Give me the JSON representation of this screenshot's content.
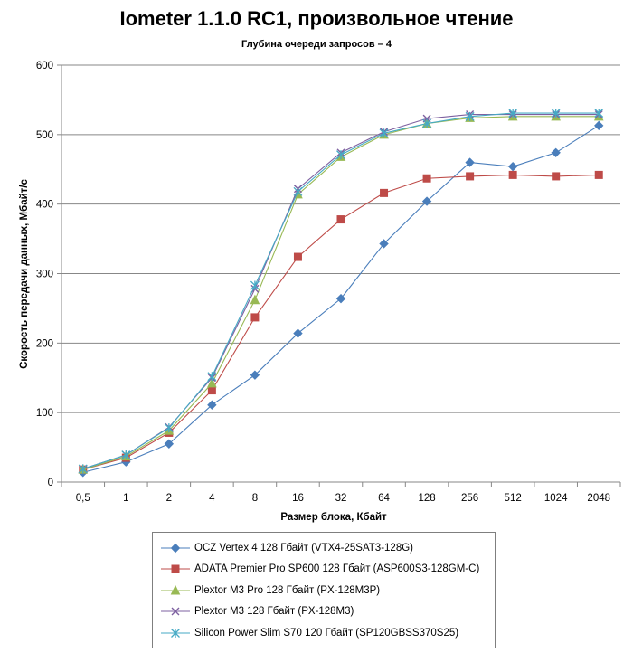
{
  "chart_data": {
    "type": "line",
    "title": "Iometer 1.1.0 RC1, произвольное чтение",
    "subtitle": "Глубина очереди запросов – 4",
    "xlabel": "Размер блока, Кбайт",
    "ylabel": "Скорость передачи данных, Мбайт/с",
    "ylim": [
      0,
      600
    ],
    "yticks": [
      "0",
      "100",
      "200",
      "300",
      "400",
      "500",
      "600"
    ],
    "categories": [
      "0,5",
      "1",
      "2",
      "4",
      "8",
      "16",
      "32",
      "64",
      "128",
      "256",
      "512",
      "1024",
      "2048"
    ],
    "grid": "horizontal",
    "legend_position": "bottom",
    "series": [
      {
        "name": "OCZ Vertex  4 128 Гбайт (VTX4-25SAT3-128G)",
        "color": "#4a7ebb",
        "marker": "diamond",
        "values": [
          14,
          29,
          55,
          111,
          154,
          214,
          264,
          343,
          404,
          460,
          454,
          474,
          513
        ]
      },
      {
        "name": "ADATA  Premier Pro SP600 128 Гбайт (ASP600S3-128GM-C)",
        "color": "#be4b48",
        "marker": "square",
        "values": [
          18,
          35,
          71,
          132,
          237,
          324,
          378,
          416,
          437,
          440,
          442,
          440,
          442
        ]
      },
      {
        "name": "Plextor M3 Pro 128 Гбайт (PX-128M3P)",
        "color": "#98b954",
        "marker": "triangle",
        "values": [
          18,
          37,
          74,
          142,
          262,
          414,
          468,
          500,
          516,
          524,
          526,
          526,
          526
        ]
      },
      {
        "name": "Plextor M3 128 Гбайт (PX-128M3)",
        "color": "#7d60a0",
        "marker": "x",
        "values": [
          19,
          39,
          79,
          150,
          278,
          422,
          474,
          504,
          523,
          529,
          529,
          529,
          529
        ]
      },
      {
        "name": "Silicon Power Slim S70 120 Гбайт (SP120GBSS370S25)",
        "color": "#46aac5",
        "marker": "star",
        "values": [
          19,
          39,
          78,
          152,
          283,
          418,
          471,
          502,
          516,
          526,
          531,
          531,
          531
        ]
      }
    ]
  }
}
